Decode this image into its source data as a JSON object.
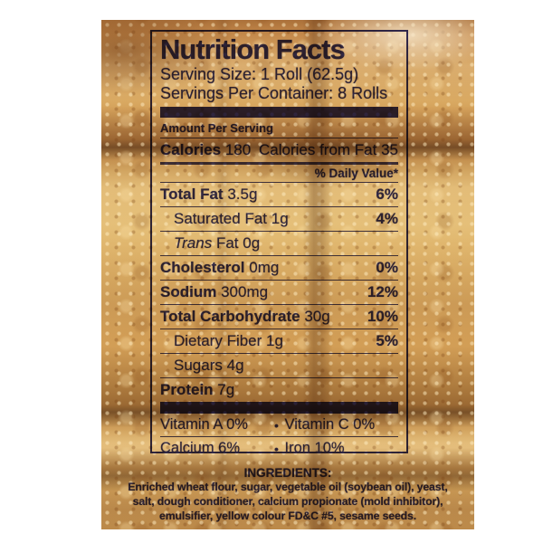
{
  "colors": {
    "ink": "#34306f",
    "margin": "#ffffff",
    "bread_gold": "#d8a75f"
  },
  "label": {
    "title": "Nutrition Facts",
    "serving_size": "Serving Size: 1 Roll (62.5g)",
    "servings_per_container": "Servings Per Container: 8 Rolls",
    "amount_per_serving": "Amount Per Serving",
    "calories_label": "Calories",
    "calories_value": "180",
    "calories_from_fat": "Calories from Fat 35",
    "daily_value_header": "% Daily Value*",
    "rows": [
      {
        "name": "Total Fat",
        "amount": "3.5g",
        "dv": "6%"
      },
      {
        "name": "Saturated Fat",
        "amount": "1g",
        "dv": "4%"
      },
      {
        "name_italic": "Trans",
        "name": "Fat",
        "amount": "0g",
        "dv": ""
      },
      {
        "name": "Cholesterol",
        "amount": "0mg",
        "dv": "0%"
      },
      {
        "name": "Sodium",
        "amount": "300mg",
        "dv": "12%"
      },
      {
        "name": "Total Carbohydrate",
        "amount": "30g",
        "dv": "10%"
      },
      {
        "name": "Dietary Fiber",
        "amount": "1g",
        "dv": "5%"
      },
      {
        "name": "Sugars",
        "amount": "4g",
        "dv": ""
      },
      {
        "name": "Protein",
        "amount": "7g",
        "dv": ""
      }
    ],
    "bullet": "•",
    "micros": [
      {
        "left": "Vitamin A 0%",
        "right": "Vitamin C 0%"
      },
      {
        "left": "Calcium 6%",
        "right": "Iron 10%"
      }
    ],
    "ingredients_title": "INGREDIENTS:",
    "ingredients_lines": [
      "Enriched wheat flour, sugar, vegetable oil (soybean oil), yeast,",
      "salt, dough conditioner, calcium propionate (mold inhibitor),",
      "emulsifier, yellow colour FD&C #5, sesame seeds."
    ]
  }
}
